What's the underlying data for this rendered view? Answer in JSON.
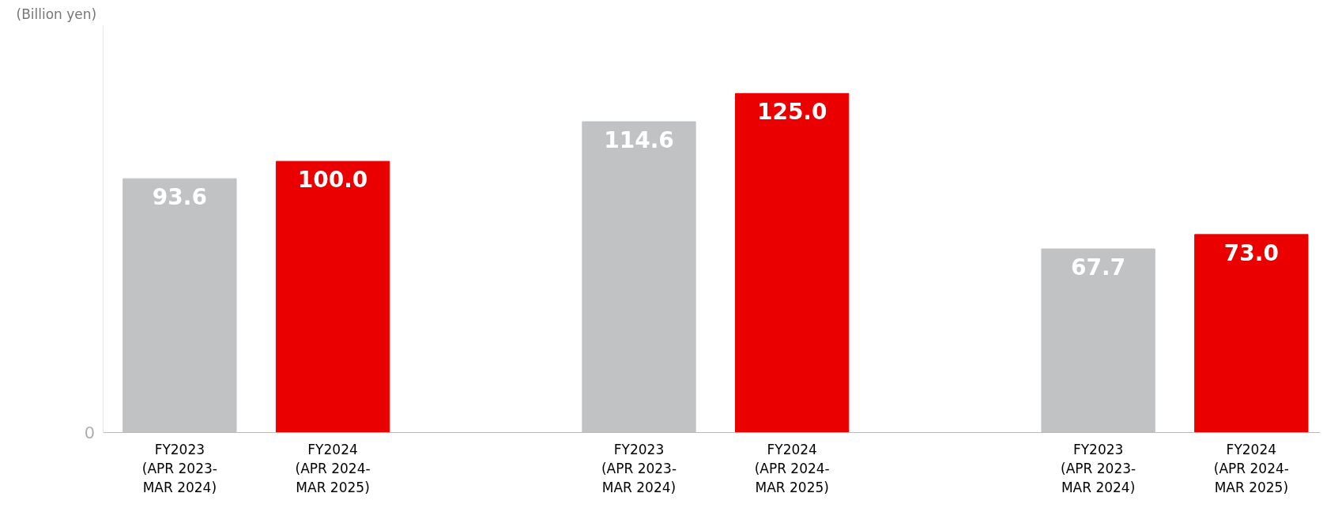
{
  "chart_data": {
    "type": "bar",
    "ylabel": "(Billion yen)",
    "categories": [
      "FY2023\n(APR 2023-\nMAR 2024)",
      "FY2024\n(APR 2024-\nMAR 2025)",
      null,
      "FY2023\n(APR 2023-\nMAR 2024)",
      "FY2024\n(APR 2024-\nMAR 2025)",
      null,
      "FY2023\n(APR 2023-\nMAR 2024)",
      "FY2024\n(APR 2024-\nMAR 2025)"
    ],
    "values": [
      93.6,
      100.0,
      null,
      114.6,
      125.0,
      null,
      67.7,
      73.0
    ],
    "colors": [
      "#c0c2c4",
      "#eb0000",
      null,
      "#c0c2c4",
      "#eb0000",
      null,
      "#c0c2c4",
      "#eb0000"
    ],
    "value_labels": [
      "93.6",
      "100.0",
      null,
      "114.6",
      "125.0",
      null,
      "67.7",
      "73.0"
    ],
    "annotations": [
      "0"
    ],
    "ylim": [
      0,
      150
    ],
    "grid": false
  }
}
